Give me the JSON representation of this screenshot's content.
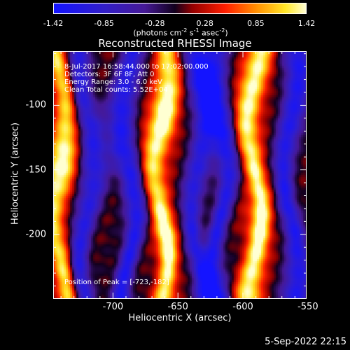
{
  "colorbar": {
    "ticks": [
      "-1.42",
      "-0.85",
      "-0.28",
      "0.28",
      "0.85",
      "1.42"
    ],
    "tick_values": [
      -1.42,
      -0.85,
      -0.28,
      0.28,
      0.85,
      1.42
    ],
    "range": [
      -1.42,
      1.42
    ],
    "unit_prefix": "(photons cm",
    "unit_e1": "-2",
    "unit_mid1": " s",
    "unit_e2": "-1",
    "unit_mid2": " asec",
    "unit_e3": "-2",
    "unit_suffix": ")"
  },
  "annotations": {
    "time": " 8-Jul-2017 16:58:44.000 to 17:02:00.000",
    "detectors": "Detectors: 3F 6F 8F, Att 0",
    "energy": "Energy Range: 3.0 - 6.0 keV",
    "clean": "Clean    Total counts: 5.52E+04",
    "peak": "Position of Peak = [-723,-182]"
  },
  "timestamp": "5-Sep-2022 22:15",
  "chart_data": {
    "type": "heatmap",
    "title": "Reconstructed RHESSI Image",
    "xlabel": "Heliocentric X (arcsec)",
    "ylabel": "Heliocentric Y (arcsec)",
    "xlim": [
      -746,
      -551
    ],
    "ylim": [
      -250,
      -58
    ],
    "xticks": [
      {
        "label": "-700",
        "value": -700
      },
      {
        "label": "-650",
        "value": -650
      },
      {
        "label": "-600",
        "value": -600
      },
      {
        "label": "-550",
        "value": -550
      }
    ],
    "yticks": [
      {
        "label": "-100",
        "value": -100
      },
      {
        "label": "-150",
        "value": -150
      },
      {
        "label": "-200",
        "value": -200
      }
    ],
    "colormap": "RHESSI red-temperature",
    "bands": [
      {
        "x": -741,
        "amp": 1.25
      },
      {
        "x": -720,
        "amp": -1.1
      },
      {
        "x": -688,
        "amp": -1.2
      },
      {
        "x": -663,
        "amp": 1.3
      },
      {
        "x": -634,
        "amp": -1.1
      },
      {
        "x": -617,
        "amp": -1.15
      },
      {
        "x": -591,
        "amp": 1.4
      },
      {
        "x": -563,
        "amp": -1.2
      }
    ],
    "peaks": [
      {
        "x": -735,
        "y": -150,
        "value": 1.42
      },
      {
        "x": -660,
        "y": -202,
        "value": 1.38
      },
      {
        "x": -593,
        "y": -190,
        "value": 1.42
      },
      {
        "x": -658,
        "y": -110,
        "value": 1.2
      }
    ]
  }
}
